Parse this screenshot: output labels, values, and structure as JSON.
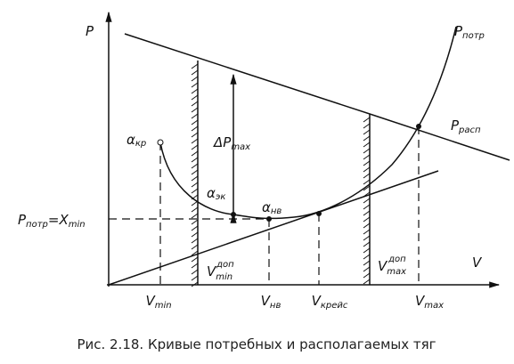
{
  "axes": {
    "y": "P",
    "x": "V"
  },
  "curves": {
    "required": {
      "text": "P",
      "sub": "потр"
    },
    "available": {
      "text": "P",
      "sub": "расп"
    }
  },
  "points": {
    "critical": {
      "text": "α",
      "sub": "кр"
    },
    "economic": {
      "text": "α",
      "sub": "эк"
    },
    "best": {
      "text": "α",
      "sub": "нв"
    }
  },
  "delta": {
    "text": "ΔP",
    "sub": "max"
  },
  "level": {
    "text": "P",
    "sub": "потр",
    "text2": "=X",
    "sub2": "min"
  },
  "limits": {
    "min": {
      "text": "V",
      "sub": "min",
      "sup": "доп"
    },
    "max": {
      "text": "V",
      "sub": "max",
      "sup": "доп"
    }
  },
  "speeds": [
    {
      "text": "V",
      "sub": "min"
    },
    {
      "text": "V",
      "sub": "нв"
    },
    {
      "text": "V",
      "sub": "крейс"
    },
    {
      "text": "V",
      "sub": "max"
    }
  ],
  "caption": "Рис. 2.18. Кривые потребных и располагаемых тяг"
}
